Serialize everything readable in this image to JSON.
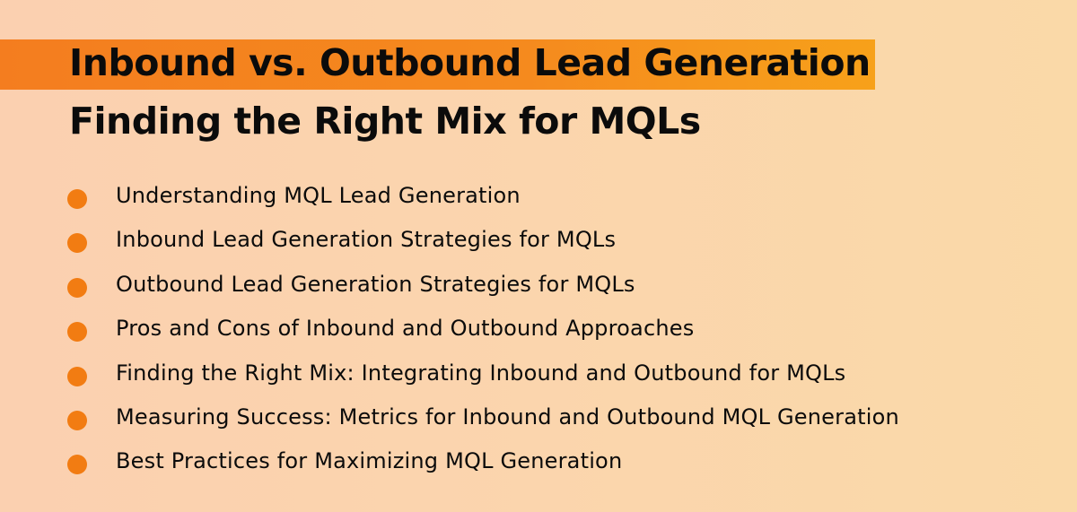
{
  "header": {
    "title": "Inbound vs. Outbound Lead Generation",
    "subtitle": "Finding the Right Mix for MQLs",
    "accent_color": "#f47d1f"
  },
  "list": {
    "bullet_color": "#f27c12",
    "items": [
      {
        "label": "Understanding MQL Lead Generation"
      },
      {
        "label": "Inbound Lead Generation Strategies for MQLs"
      },
      {
        "label": "Outbound Lead Generation Strategies for MQLs"
      },
      {
        "label": "Pros and Cons of Inbound and Outbound Approaches"
      },
      {
        "label": "Finding the Right Mix: Integrating Inbound and Outbound for MQLs"
      },
      {
        "label": "Measuring Success: Metrics for Inbound and Outbound MQL Generation"
      },
      {
        "label": "Best Practices for Maximizing MQL Generation"
      }
    ]
  }
}
